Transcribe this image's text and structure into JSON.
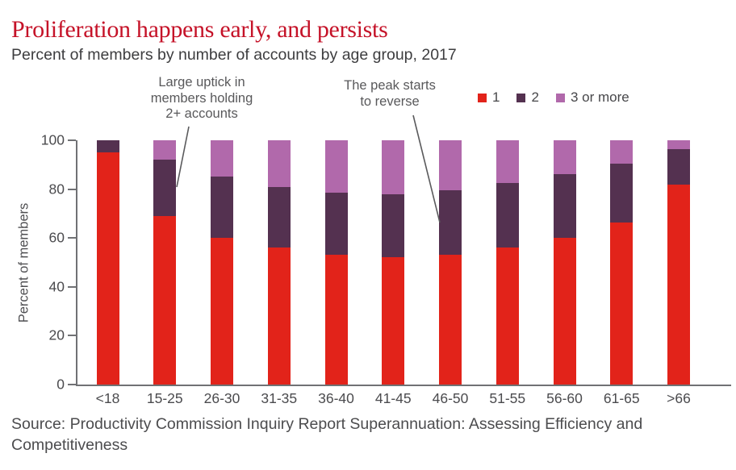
{
  "header": {
    "title": "Proliferation happens early, and persists",
    "subtitle": "Percent of members by number of accounts by age group, 2017"
  },
  "annotations": [
    {
      "text": "Large uptick in\nmembers holding\n2+ accounts"
    },
    {
      "text": "The peak starts\nto reverse"
    }
  ],
  "chart_data": {
    "type": "bar",
    "stacked": true,
    "title": "Proliferation happens early, and persists",
    "subtitle": "Percent of members by number of accounts by age group, 2017",
    "categories": [
      "<18",
      "15-25",
      "26-30",
      "31-35",
      "36-40",
      "41-45",
      "46-50",
      "51-55",
      "56-60",
      "61-65",
      ">66"
    ],
    "series": [
      {
        "name": "1",
        "color": "#e2231a",
        "values": [
          95,
          69,
          60,
          56,
          53,
          52,
          53,
          56,
          60,
          66.5,
          82
        ]
      },
      {
        "name": "2",
        "color": "#543150",
        "values": [
          5,
          23,
          25,
          25,
          25.5,
          26,
          26.5,
          26.5,
          26,
          24,
          14.5
        ]
      },
      {
        "name": "3 or more",
        "color": "#b169ab",
        "values": [
          0,
          8,
          15,
          19,
          21.5,
          22,
          20.5,
          17.5,
          14,
          9.5,
          3.5
        ]
      }
    ],
    "xlabel": "",
    "ylabel": "Percent of members",
    "ylim": [
      0,
      100
    ],
    "yticks": [
      0,
      20,
      40,
      60,
      80,
      100
    ],
    "grid": false,
    "legend_position": "top-right"
  },
  "colors": {
    "title_red": "#c51228",
    "bar_red": "#e2231a",
    "bar_dark_purple": "#543150",
    "bar_light_purple": "#b169ab",
    "axis_gray": "#707174",
    "text_gray": "#4b4b4e",
    "annotation_gray": "#59595b"
  },
  "source": "Source: Productivity Commission Inquiry Report Superannuation: Assessing Efficiency and Competitiveness"
}
